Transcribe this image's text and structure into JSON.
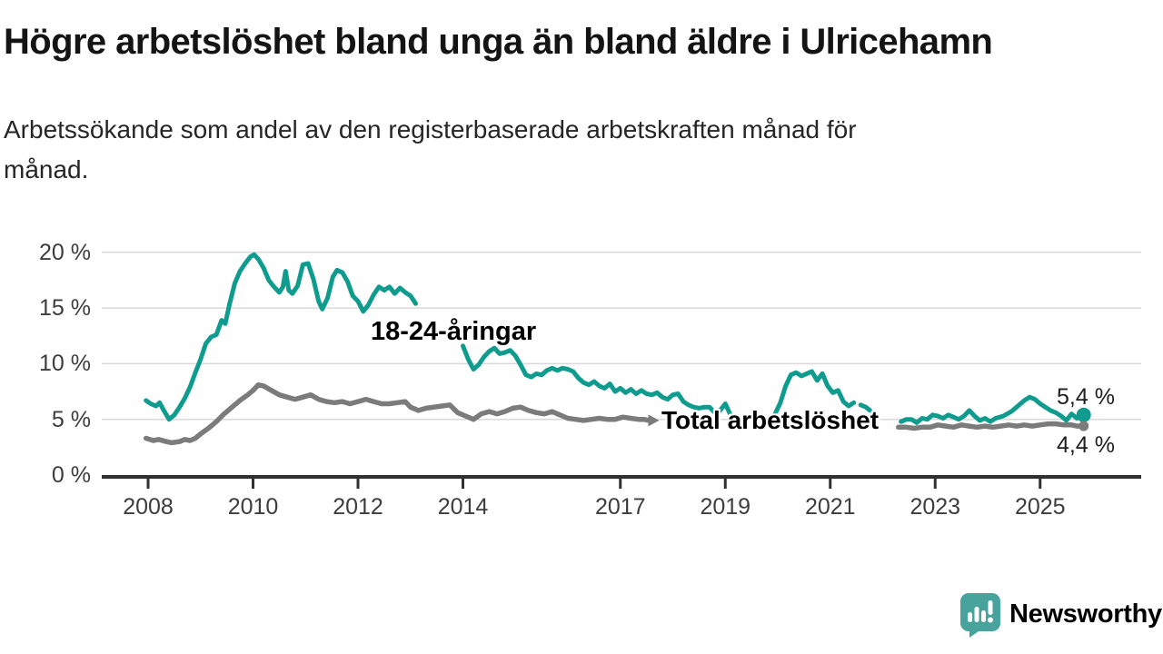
{
  "header": {
    "title": "Högre arbetslöshet bland unga än bland äldre i Ulricehamn",
    "subtitle_lines": [
      "Arbetssökande som andel av den registerbaserade arbetskraften månad för",
      "månad."
    ]
  },
  "colors": {
    "accent_teal": "#0f9c8f",
    "series_gray": "#7b7b7b",
    "axis_line": "#303030",
    "gridline": "#d9d9d9",
    "axis_text": "#3d3d3d",
    "value_text": "#1f1f1f",
    "logo_teal": "#48a39c"
  },
  "chart_data": {
    "type": "line",
    "title": "Högre arbetslöshet bland unga än bland äldre i Ulricehamn",
    "subtitle": "Arbetssökande som andel av den registerbaserade arbetskraften månad för månad.",
    "unit": "%",
    "grid": true,
    "x_axis": {
      "ticks": [
        2008,
        2010,
        2012,
        2014,
        2017,
        2019,
        2021,
        2023,
        2025
      ],
      "start": 2007.96,
      "end": 2025.83
    },
    "y_axis": {
      "ticks": [
        0,
        5,
        10,
        15,
        20
      ],
      "labels": [
        "0 %",
        "5 %",
        "10 %",
        "15 %",
        "20 %"
      ],
      "min": 0,
      "max": 20
    },
    "series": [
      {
        "name": "18-24-åringar",
        "color": "#0f9c8f",
        "end_label": "5,4 %",
        "end_value": 5.4,
        "points": [
          [
            2007.96,
            6.7
          ],
          [
            2008.05,
            6.4
          ],
          [
            2008.15,
            6.2
          ],
          [
            2008.22,
            6.5
          ],
          [
            2008.3,
            5.8
          ],
          [
            2008.4,
            5.0
          ],
          [
            2008.5,
            5.4
          ],
          [
            2008.6,
            6.1
          ],
          [
            2008.7,
            6.9
          ],
          [
            2008.8,
            7.9
          ],
          [
            2008.9,
            9.2
          ],
          [
            2009.0,
            10.4
          ],
          [
            2009.1,
            11.8
          ],
          [
            2009.2,
            12.4
          ],
          [
            2009.3,
            12.6
          ],
          [
            2009.4,
            13.9
          ],
          [
            2009.47,
            13.6
          ],
          [
            2009.55,
            15.3
          ],
          [
            2009.65,
            17.2
          ],
          [
            2009.75,
            18.3
          ],
          [
            2009.85,
            19.0
          ],
          [
            2009.95,
            19.6
          ],
          [
            2010.02,
            19.8
          ],
          [
            2010.1,
            19.4
          ],
          [
            2010.2,
            18.6
          ],
          [
            2010.3,
            17.5
          ],
          [
            2010.4,
            16.9
          ],
          [
            2010.5,
            16.4
          ],
          [
            2010.57,
            16.9
          ],
          [
            2010.62,
            18.3
          ],
          [
            2010.68,
            16.6
          ],
          [
            2010.75,
            16.3
          ],
          [
            2010.85,
            17.0
          ],
          [
            2010.95,
            18.9
          ],
          [
            2011.05,
            19.0
          ],
          [
            2011.15,
            17.6
          ],
          [
            2011.25,
            15.6
          ],
          [
            2011.32,
            14.9
          ],
          [
            2011.42,
            15.9
          ],
          [
            2011.52,
            17.8
          ],
          [
            2011.6,
            18.4
          ],
          [
            2011.7,
            18.2
          ],
          [
            2011.8,
            17.4
          ],
          [
            2011.9,
            16.1
          ],
          [
            2012.0,
            15.6
          ],
          [
            2012.1,
            14.7
          ],
          [
            2012.2,
            15.3
          ],
          [
            2012.3,
            16.2
          ],
          [
            2012.4,
            16.9
          ],
          [
            2012.5,
            16.6
          ],
          [
            2012.6,
            16.9
          ],
          [
            2012.7,
            16.3
          ],
          [
            2012.8,
            16.8
          ],
          [
            2012.9,
            16.4
          ],
          [
            2013.0,
            16.1
          ],
          [
            2013.1,
            15.4
          ],
          [
            2013.25,
            null
          ],
          [
            2013.5,
            null
          ],
          [
            2013.75,
            null
          ],
          [
            2014.0,
            11.6
          ],
          [
            2014.1,
            10.4
          ],
          [
            2014.2,
            9.5
          ],
          [
            2014.3,
            9.9
          ],
          [
            2014.4,
            10.6
          ],
          [
            2014.5,
            11.1
          ],
          [
            2014.6,
            11.4
          ],
          [
            2014.7,
            10.9
          ],
          [
            2014.8,
            11.0
          ],
          [
            2014.9,
            11.2
          ],
          [
            2015.0,
            10.7
          ],
          [
            2015.1,
            9.9
          ],
          [
            2015.2,
            9.0
          ],
          [
            2015.3,
            8.8
          ],
          [
            2015.4,
            9.1
          ],
          [
            2015.5,
            9.0
          ],
          [
            2015.6,
            9.4
          ],
          [
            2015.7,
            9.6
          ],
          [
            2015.8,
            9.4
          ],
          [
            2015.9,
            9.6
          ],
          [
            2016.0,
            9.5
          ],
          [
            2016.1,
            9.3
          ],
          [
            2016.2,
            8.7
          ],
          [
            2016.3,
            8.3
          ],
          [
            2016.4,
            8.1
          ],
          [
            2016.5,
            8.4
          ],
          [
            2016.6,
            8.0
          ],
          [
            2016.7,
            7.8
          ],
          [
            2016.8,
            8.2
          ],
          [
            2016.9,
            7.5
          ],
          [
            2017.0,
            7.8
          ],
          [
            2017.1,
            7.4
          ],
          [
            2017.2,
            7.7
          ],
          [
            2017.3,
            7.3
          ],
          [
            2017.4,
            7.6
          ],
          [
            2017.5,
            7.3
          ],
          [
            2017.6,
            7.2
          ],
          [
            2017.7,
            7.4
          ],
          [
            2017.8,
            7.0
          ],
          [
            2017.9,
            6.8
          ],
          [
            2018.0,
            7.2
          ],
          [
            2018.1,
            7.3
          ],
          [
            2018.2,
            6.6
          ],
          [
            2018.3,
            6.3
          ],
          [
            2018.4,
            6.1
          ],
          [
            2018.5,
            6.0
          ],
          [
            2018.6,
            6.1
          ],
          [
            2018.7,
            6.1
          ],
          [
            2018.8,
            5.6
          ],
          [
            2018.9,
            5.8
          ],
          [
            2019.0,
            6.4
          ],
          [
            2019.1,
            5.4
          ],
          [
            2019.2,
            5.2
          ],
          [
            2019.4,
            null
          ],
          [
            2019.6,
            null
          ],
          [
            2019.8,
            null
          ],
          [
            2019.95,
            5.5
          ],
          [
            2020.05,
            6.5
          ],
          [
            2020.15,
            8.0
          ],
          [
            2020.25,
            9.0
          ],
          [
            2020.35,
            9.2
          ],
          [
            2020.45,
            8.9
          ],
          [
            2020.55,
            9.1
          ],
          [
            2020.65,
            9.3
          ],
          [
            2020.75,
            8.5
          ],
          [
            2020.85,
            9.1
          ],
          [
            2020.95,
            8.0
          ],
          [
            2021.05,
            7.4
          ],
          [
            2021.15,
            7.6
          ],
          [
            2021.25,
            6.6
          ],
          [
            2021.35,
            6.2
          ],
          [
            2021.45,
            6.5
          ],
          [
            2021.5,
            null
          ],
          [
            2021.58,
            6.3
          ],
          [
            2021.68,
            6.1
          ],
          [
            2021.76,
            5.8
          ],
          [
            2021.9,
            null
          ],
          [
            2022.1,
            null
          ],
          [
            2022.28,
            null
          ],
          [
            2022.35,
            4.8
          ],
          [
            2022.45,
            5.0
          ],
          [
            2022.55,
            5.0
          ],
          [
            2022.65,
            4.7
          ],
          [
            2022.75,
            5.1
          ],
          [
            2022.85,
            5.0
          ],
          [
            2022.95,
            5.4
          ],
          [
            2023.05,
            5.3
          ],
          [
            2023.15,
            5.1
          ],
          [
            2023.25,
            5.4
          ],
          [
            2023.35,
            5.2
          ],
          [
            2023.45,
            5.0
          ],
          [
            2023.55,
            5.3
          ],
          [
            2023.65,
            5.8
          ],
          [
            2023.75,
            5.3
          ],
          [
            2023.85,
            4.9
          ],
          [
            2023.95,
            5.1
          ],
          [
            2024.05,
            4.8
          ],
          [
            2024.15,
            5.1
          ],
          [
            2024.3,
            5.3
          ],
          [
            2024.45,
            5.7
          ],
          [
            2024.6,
            6.3
          ],
          [
            2024.7,
            6.7
          ],
          [
            2024.8,
            7.0
          ],
          [
            2024.9,
            6.8
          ],
          [
            2025.0,
            6.4
          ],
          [
            2025.1,
            6.1
          ],
          [
            2025.2,
            5.8
          ],
          [
            2025.3,
            5.6
          ],
          [
            2025.4,
            5.3
          ],
          [
            2025.5,
            4.9
          ],
          [
            2025.6,
            5.5
          ],
          [
            2025.7,
            5.1
          ],
          [
            2025.83,
            5.4
          ]
        ]
      },
      {
        "name": "Total arbetslöshet",
        "color": "#7b7b7b",
        "end_label": "4,4 %",
        "end_value": 4.4,
        "points": [
          [
            2007.96,
            3.3
          ],
          [
            2008.1,
            3.1
          ],
          [
            2008.2,
            3.2
          ],
          [
            2008.35,
            3.0
          ],
          [
            2008.45,
            2.9
          ],
          [
            2008.6,
            3.0
          ],
          [
            2008.7,
            3.2
          ],
          [
            2008.8,
            3.1
          ],
          [
            2008.9,
            3.3
          ],
          [
            2009.0,
            3.7
          ],
          [
            2009.15,
            4.2
          ],
          [
            2009.3,
            4.8
          ],
          [
            2009.45,
            5.5
          ],
          [
            2009.6,
            6.1
          ],
          [
            2009.75,
            6.7
          ],
          [
            2009.9,
            7.2
          ],
          [
            2010.0,
            7.6
          ],
          [
            2010.1,
            8.1
          ],
          [
            2010.2,
            8.0
          ],
          [
            2010.35,
            7.6
          ],
          [
            2010.5,
            7.2
          ],
          [
            2010.65,
            7.0
          ],
          [
            2010.8,
            6.8
          ],
          [
            2010.95,
            7.0
          ],
          [
            2011.1,
            7.2
          ],
          [
            2011.25,
            6.8
          ],
          [
            2011.4,
            6.6
          ],
          [
            2011.55,
            6.5
          ],
          [
            2011.7,
            6.6
          ],
          [
            2011.85,
            6.4
          ],
          [
            2012.0,
            6.6
          ],
          [
            2012.15,
            6.8
          ],
          [
            2012.3,
            6.6
          ],
          [
            2012.45,
            6.4
          ],
          [
            2012.6,
            6.4
          ],
          [
            2012.75,
            6.5
          ],
          [
            2012.9,
            6.6
          ],
          [
            2013.0,
            6.1
          ],
          [
            2013.15,
            5.8
          ],
          [
            2013.3,
            6.0
          ],
          [
            2013.45,
            6.1
          ],
          [
            2013.6,
            6.2
          ],
          [
            2013.75,
            6.3
          ],
          [
            2013.9,
            5.6
          ],
          [
            2014.05,
            5.3
          ],
          [
            2014.2,
            5.0
          ],
          [
            2014.35,
            5.5
          ],
          [
            2014.5,
            5.7
          ],
          [
            2014.65,
            5.5
          ],
          [
            2014.8,
            5.7
          ],
          [
            2014.95,
            6.0
          ],
          [
            2015.1,
            6.1
          ],
          [
            2015.25,
            5.8
          ],
          [
            2015.4,
            5.6
          ],
          [
            2015.55,
            5.5
          ],
          [
            2015.7,
            5.7
          ],
          [
            2015.85,
            5.4
          ],
          [
            2016.0,
            5.1
          ],
          [
            2016.15,
            5.0
          ],
          [
            2016.3,
            4.9
          ],
          [
            2016.45,
            5.0
          ],
          [
            2016.6,
            5.1
          ],
          [
            2016.75,
            5.0
          ],
          [
            2016.9,
            5.0
          ],
          [
            2017.05,
            5.2
          ],
          [
            2017.2,
            5.1
          ],
          [
            2017.35,
            5.0
          ],
          [
            2017.45,
            5.0
          ],
          [
            2017.55,
            4.9
          ],
          [
            2018.0,
            null
          ],
          [
            2019.0,
            null
          ],
          [
            2020.0,
            null
          ],
          [
            2021.0,
            null
          ],
          [
            2022.1,
            null
          ],
          [
            2022.3,
            4.3
          ],
          [
            2022.45,
            4.3
          ],
          [
            2022.6,
            4.2
          ],
          [
            2022.75,
            4.3
          ],
          [
            2022.9,
            4.3
          ],
          [
            2023.05,
            4.5
          ],
          [
            2023.2,
            4.4
          ],
          [
            2023.35,
            4.3
          ],
          [
            2023.5,
            4.5
          ],
          [
            2023.65,
            4.4
          ],
          [
            2023.8,
            4.3
          ],
          [
            2023.95,
            4.4
          ],
          [
            2024.1,
            4.3
          ],
          [
            2024.25,
            4.4
          ],
          [
            2024.4,
            4.5
          ],
          [
            2024.55,
            4.4
          ],
          [
            2024.7,
            4.5
          ],
          [
            2024.85,
            4.4
          ],
          [
            2025.0,
            4.5
          ],
          [
            2025.15,
            4.6
          ],
          [
            2025.3,
            4.6
          ],
          [
            2025.45,
            4.5
          ],
          [
            2025.6,
            4.5
          ],
          [
            2025.7,
            4.4
          ],
          [
            2025.83,
            4.4
          ]
        ]
      }
    ]
  },
  "footer": {
    "brand": "Newsworthy"
  }
}
